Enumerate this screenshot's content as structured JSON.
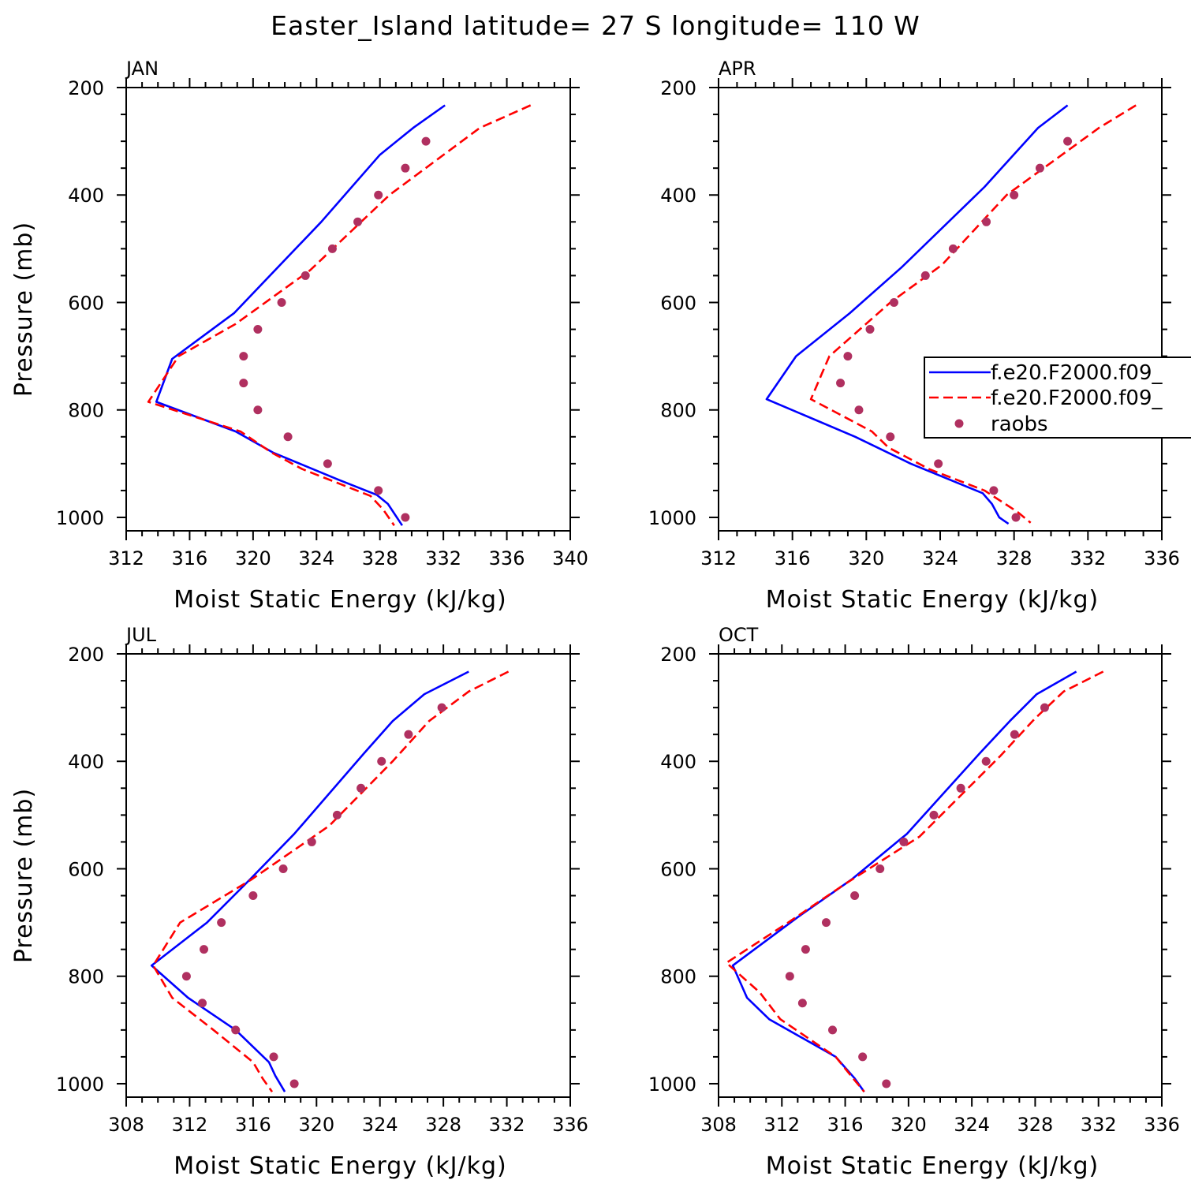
{
  "title": "Easter_Island  latitude= 27 S longitude= 110 W",
  "chart_data": {
    "type": "line",
    "xlabel": "Moist Static Energy (kJ/kg)",
    "ylabel": "Pressure (mb)",
    "series_styles": [
      {
        "color": "#0000ff",
        "dash": "solid"
      },
      {
        "color": "#ff0000",
        "dash": "dashed"
      },
      {
        "color": "#b03060",
        "marker": "dot"
      }
    ],
    "legend": {
      "placement": "right of APR panel",
      "entries": [
        "f.e20.F2000.f09_",
        "f.e20.F2000.f09_",
        "raobs"
      ]
    },
    "panels": [
      {
        "label": "JAN",
        "xlim": [
          312,
          340
        ],
        "xticks": [
          312,
          316,
          320,
          324,
          328,
          332,
          336,
          340
        ],
        "ylim": [
          1025,
          200
        ],
        "yticks": [
          200,
          400,
          600,
          800,
          1000
        ],
        "series": [
          {
            "pressure": [
              233,
              275,
              325,
              450,
              620,
              705,
              785,
              840,
              880,
              930,
              958,
              975,
              1015
            ],
            "values": [
              332.1,
              330.1,
              328.0,
              324.3,
              318.8,
              314.9,
              313.9,
              318.9,
              321.3,
              325.4,
              327.8,
              328.5,
              329.4
            ]
          },
          {
            "pressure": [
              233,
              275,
              400,
              540,
              640,
              700,
              785,
              840,
              880,
              910,
              960,
              985,
              1015
            ],
            "values": [
              337.5,
              334.3,
              328.6,
              323.6,
              318.9,
              315.3,
              313.4,
              319.2,
              321.2,
              323.1,
              327.4,
              328.2,
              328.9
            ]
          },
          {
            "pressure": [
              300,
              350,
              400,
              450,
              500,
              550,
              600,
              650,
              700,
              750,
              800,
              850,
              900,
              950,
              1000
            ],
            "values": [
              330.9,
              329.6,
              327.9,
              326.6,
              325.0,
              323.3,
              321.8,
              320.3,
              319.4,
              319.4,
              320.3,
              322.2,
              324.7,
              327.9,
              329.6
            ]
          }
        ]
      },
      {
        "label": "APR",
        "xlim": [
          312,
          336
        ],
        "xticks": [
          312,
          316,
          320,
          324,
          328,
          332,
          336
        ],
        "ylim": [
          1025,
          200
        ],
        "yticks": [
          200,
          400,
          600,
          800,
          1000
        ],
        "series": [
          {
            "pressure": [
              233,
              275,
              385,
              535,
              620,
              700,
              780,
              850,
              900,
              955,
              975,
              1000,
              1012
            ],
            "values": [
              330.9,
              329.3,
              326.4,
              321.9,
              319.1,
              316.2,
              314.6,
              319.4,
              322.4,
              326.3,
              326.8,
              327.2,
              327.7
            ]
          },
          {
            "pressure": [
              233,
              275,
              400,
              530,
              600,
              700,
              780,
              840,
              870,
              910,
              950,
              990,
              1010
            ],
            "values": [
              334.6,
              332.6,
              327.6,
              324.1,
              321.3,
              318.0,
              317.0,
              320.3,
              321.2,
              323.4,
              326.4,
              328.2,
              328.9
            ]
          },
          {
            "pressure": [
              300,
              350,
              400,
              450,
              500,
              550,
              600,
              650,
              700,
              750,
              800,
              850,
              900,
              950,
              1000
            ],
            "values": [
              330.9,
              329.4,
              328.0,
              326.5,
              324.7,
              323.2,
              321.5,
              320.2,
              319.0,
              318.6,
              319.6,
              321.3,
              323.9,
              326.9,
              328.1
            ]
          }
        ]
      },
      {
        "label": "JUL",
        "xlim": [
          308,
          336
        ],
        "xticks": [
          308,
          312,
          316,
          320,
          324,
          328,
          332,
          336
        ],
        "ylim": [
          1025,
          200
        ],
        "yticks": [
          200,
          400,
          600,
          800,
          1000
        ],
        "series": [
          {
            "pressure": [
              233,
              275,
              325,
              385,
              535,
              620,
              700,
              780,
              840,
              900,
              960,
              985,
              1015
            ],
            "values": [
              329.6,
              326.8,
              324.8,
              323.0,
              318.6,
              315.8,
              313.1,
              309.6,
              311.9,
              314.9,
              317.0,
              317.4,
              318.0
            ]
          },
          {
            "pressure": [
              233,
              270,
              325,
              400,
              520,
              620,
              700,
              780,
              840,
              900,
              960,
              990,
              1015
            ],
            "values": [
              332.1,
              329.6,
              327.1,
              324.8,
              320.8,
              315.9,
              311.4,
              309.7,
              310.9,
              313.5,
              316.0,
              316.6,
              317.2
            ]
          },
          {
            "pressure": [
              300,
              350,
              400,
              450,
              500,
              550,
              600,
              650,
              700,
              750,
              800,
              850,
              900,
              950,
              1000
            ],
            "values": [
              327.9,
              325.8,
              324.1,
              322.8,
              321.3,
              319.7,
              317.9,
              316.0,
              314.0,
              312.9,
              311.8,
              312.8,
              314.9,
              317.3,
              318.6
            ]
          }
        ]
      },
      {
        "label": "OCT",
        "xlim": [
          308,
          336
        ],
        "xticks": [
          308,
          312,
          316,
          320,
          324,
          328,
          332,
          336
        ],
        "ylim": [
          1025,
          200
        ],
        "yticks": [
          200,
          400,
          600,
          800,
          1000
        ],
        "series": [
          {
            "pressure": [
              233,
              275,
              325,
              385,
              535,
              620,
              690,
              780,
              840,
              880,
              950,
              990,
              1015
            ],
            "values": [
              330.6,
              328.1,
              326.4,
              324.5,
              319.9,
              316.4,
              313.0,
              308.9,
              309.8,
              311.2,
              315.4,
              316.6,
              317.2
            ]
          },
          {
            "pressure": [
              233,
              270,
              320,
              390,
              540,
              630,
              700,
              775,
              830,
              880,
              950,
              990,
              1015
            ],
            "values": [
              332.3,
              329.8,
              328.0,
              325.8,
              320.7,
              315.9,
              312.4,
              308.5,
              310.6,
              311.9,
              315.4,
              316.5,
              317.2
            ]
          },
          {
            "pressure": [
              300,
              350,
              400,
              450,
              500,
              550,
              600,
              650,
              700,
              750,
              800,
              850,
              900,
              950,
              1000
            ],
            "values": [
              328.6,
              326.7,
              324.9,
              323.3,
              321.6,
              319.7,
              318.2,
              316.6,
              314.8,
              313.5,
              312.5,
              313.3,
              315.2,
              317.1,
              318.6
            ]
          }
        ]
      }
    ]
  }
}
